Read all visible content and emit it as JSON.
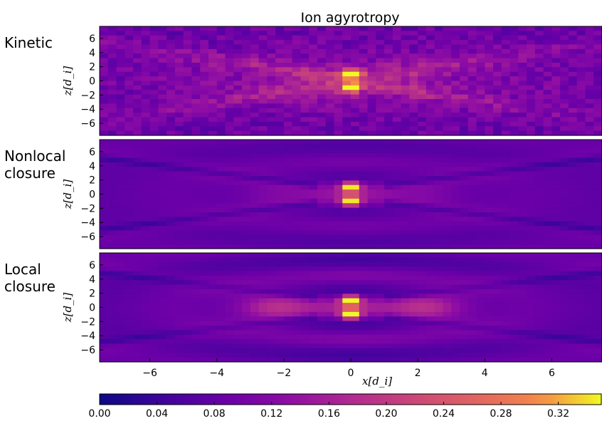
{
  "chart_data": {
    "type": "heatmap",
    "title": "Ion agyrotropy",
    "xlabel": "x[d_i]",
    "ylabel": "z[d_i]",
    "xlim": [
      -7.5,
      7.5
    ],
    "ylim": [
      -7.7,
      7.7
    ],
    "x_ticks": [
      -6,
      -4,
      -2,
      0,
      2,
      4,
      6
    ],
    "y_ticks": [
      6,
      4,
      2,
      0,
      -2,
      -4,
      -6
    ],
    "colorbar": {
      "range": [
        0.0,
        0.35
      ],
      "ticks": [
        0.0,
        0.04,
        0.08,
        0.12,
        0.16,
        0.2,
        0.24,
        0.28,
        0.32
      ],
      "tick_labels": [
        "0.00",
        "0.04",
        "0.08",
        "0.12",
        "0.16",
        "0.20",
        "0.24",
        "0.28",
        "0.32"
      ],
      "colormap": "plasma"
    },
    "panels": [
      {
        "label_lines": [
          "Kinetic"
        ],
        "style": "kinetic",
        "noisy": true
      },
      {
        "label_lines": [
          "Nonlocal",
          "closure"
        ],
        "style": "nonlocal",
        "noisy": false
      },
      {
        "label_lines": [
          "Local",
          "closure"
        ],
        "style": "local",
        "noisy": false
      }
    ]
  }
}
